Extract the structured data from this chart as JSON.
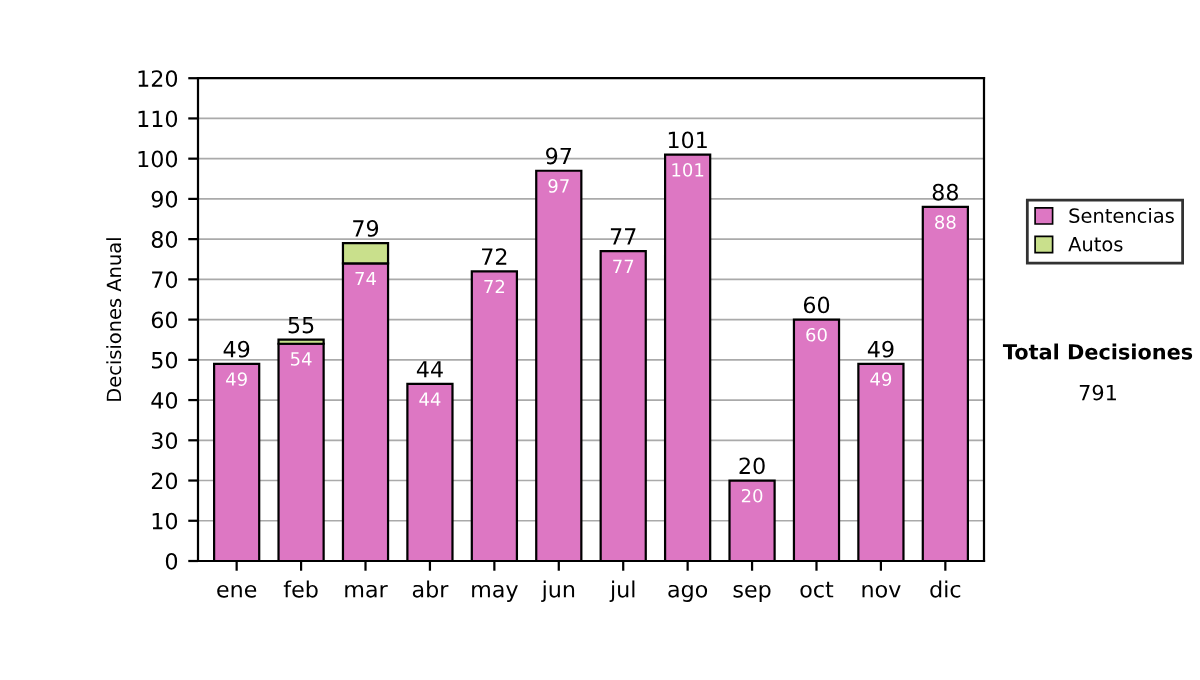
{
  "chart_data": {
    "type": "bar",
    "stacked": true,
    "ylabel": "Decisiones Anual",
    "categories": [
      "ene",
      "feb",
      "mar",
      "abr",
      "may",
      "jun",
      "jul",
      "ago",
      "sep",
      "oct",
      "nov",
      "dic"
    ],
    "series": [
      {
        "name": "Sentencias",
        "color": "#dd77c3",
        "values": [
          49,
          54,
          74,
          44,
          72,
          97,
          77,
          101,
          20,
          60,
          49,
          88
        ],
        "value_labels": [
          "49",
          "54",
          "74",
          "44",
          "72",
          "97",
          "77",
          "101",
          "20",
          "60",
          "49",
          "88"
        ]
      },
      {
        "name": "Autos",
        "color": "#c9e08c",
        "values": [
          0,
          1,
          5,
          0,
          0,
          0,
          0,
          0,
          0,
          0,
          0,
          0
        ]
      }
    ],
    "totals": [
      "49",
      "55",
      "79",
      "44",
      "72",
      "97",
      "77",
      "101",
      "20",
      "60",
      "49",
      "88"
    ],
    "ylim": [
      0,
      120
    ],
    "yticks": [
      0,
      10,
      20,
      30,
      40,
      50,
      60,
      70,
      80,
      90,
      100,
      110,
      120
    ],
    "grid": "y",
    "legend": "right",
    "annotations": [
      "Total Decisiones",
      "791"
    ]
  }
}
